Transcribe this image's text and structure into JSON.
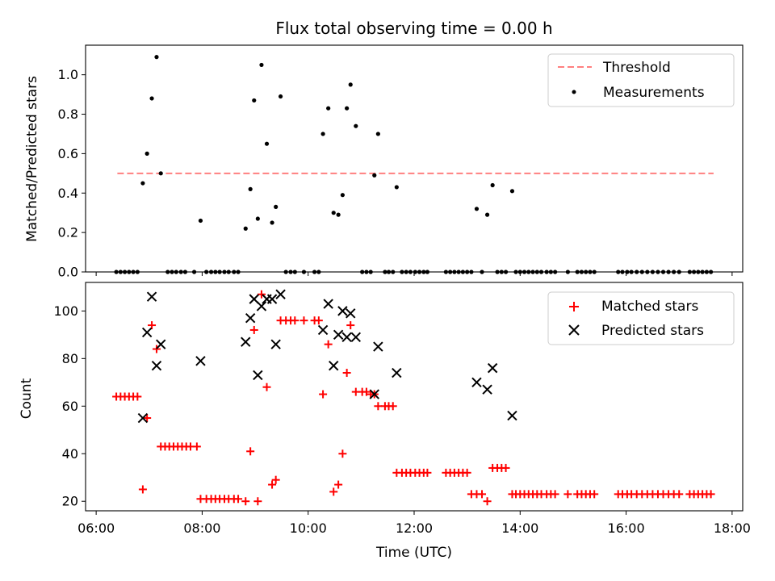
{
  "figure": {
    "title": "Flux total observing time = 0.00 h",
    "shared_x_ticks": [
      "06:00",
      "08:00",
      "10:00",
      "12:00",
      "14:00",
      "16:00",
      "18:00"
    ],
    "shared_x_label": "Time (UTC)"
  },
  "chart_data": [
    {
      "type": "scatter",
      "ylabel": "Matched/Predicted stars",
      "xlim": [
        5.8,
        18.2
      ],
      "ylim": [
        0,
        1.15
      ],
      "y_ticks": [
        "0.0",
        "0.2",
        "0.4",
        "0.6",
        "0.8",
        "1.0"
      ],
      "y_tick_values": [
        0,
        0.2,
        0.4,
        0.6,
        0.8,
        1.0
      ],
      "legend": {
        "placement": "top-right",
        "entries": [
          {
            "label": "Threshold",
            "style": "dashed-line",
            "color": "#ff7f7f"
          },
          {
            "label": "Measurements",
            "style": "dot",
            "color": "#000000"
          }
        ]
      },
      "series": [
        {
          "name": "Threshold",
          "style": "dashed-line",
          "color": "#ff7f7f",
          "x": [
            6.4,
            17.65
          ],
          "y": [
            0.5,
            0.5
          ]
        },
        {
          "name": "Measurements",
          "style": "dot",
          "color": "#000000",
          "x": [
            6.38,
            6.46,
            6.54,
            6.62,
            6.7,
            6.78,
            6.88,
            6.96,
            7.05,
            7.14,
            7.22,
            7.35,
            7.43,
            7.51,
            7.6,
            7.68,
            7.85,
            7.97,
            8.08,
            8.17,
            8.25,
            8.33,
            8.42,
            8.5,
            8.6,
            8.68,
            8.82,
            8.91,
            8.98,
            9.05,
            9.12,
            9.22,
            9.32,
            9.39,
            9.48,
            9.58,
            9.67,
            9.75,
            9.92,
            10.12,
            10.2,
            10.28,
            10.38,
            10.48,
            10.57,
            10.65,
            10.73,
            10.8,
            10.9,
            11.02,
            11.1,
            11.18,
            11.25,
            11.32,
            11.45,
            11.52,
            11.6,
            11.67,
            11.77,
            11.85,
            11.93,
            12.02,
            12.1,
            12.18,
            12.25,
            12.6,
            12.68,
            12.76,
            12.84,
            12.92,
            13.0,
            13.08,
            13.18,
            13.28,
            13.38,
            13.48,
            13.57,
            13.65,
            13.73,
            13.85,
            13.92,
            14.0,
            14.08,
            14.16,
            14.24,
            14.32,
            14.4,
            14.5,
            14.58,
            14.66,
            14.9,
            15.08,
            15.16,
            15.24,
            15.32,
            15.4,
            15.85,
            15.93,
            16.02,
            16.1,
            16.2,
            16.3,
            16.4,
            16.5,
            16.6,
            16.7,
            16.8,
            16.9,
            17.0,
            17.2,
            17.28,
            17.36,
            17.44,
            17.52,
            17.6
          ],
          "y": [
            0,
            0,
            0,
            0,
            0,
            0,
            0.45,
            0.6,
            0.88,
            1.09,
            0.5,
            0,
            0,
            0,
            0,
            0,
            0,
            0.26,
            0,
            0,
            0,
            0,
            0,
            0,
            0,
            0,
            0.22,
            0.42,
            0.87,
            0.27,
            1.05,
            0.65,
            0.25,
            0.33,
            0.89,
            0,
            0,
            0,
            0,
            0,
            0,
            0.7,
            0.83,
            0.3,
            0.29,
            0.39,
            0.83,
            0.95,
            0.74,
            0,
            0,
            0,
            0.49,
            0.7,
            0,
            0,
            0,
            0.43,
            0,
            0,
            0,
            0,
            0,
            0,
            0,
            0,
            0,
            0,
            0,
            0,
            0,
            0,
            0.32,
            0,
            0.29,
            0.44,
            0,
            0,
            0,
            0.41,
            0,
            0,
            0,
            0,
            0,
            0,
            0,
            0,
            0,
            0,
            0,
            0,
            0,
            0,
            0,
            0,
            0,
            0,
            0,
            0,
            0,
            0,
            0,
            0,
            0,
            0,
            0,
            0,
            0,
            0,
            0,
            0,
            0,
            0,
            0
          ]
        }
      ]
    },
    {
      "type": "scatter",
      "ylabel": "Count",
      "xlabel": "Time (UTC)",
      "xlim": [
        5.8,
        18.2
      ],
      "ylim": [
        16,
        112
      ],
      "y_ticks": [
        "20",
        "40",
        "60",
        "80",
        "100"
      ],
      "y_tick_values": [
        20,
        40,
        60,
        80,
        100
      ],
      "legend": {
        "placement": "top-right",
        "entries": [
          {
            "label": "Matched stars",
            "style": "plus",
            "color": "#ff0000"
          },
          {
            "label": "Predicted stars",
            "style": "cross",
            "color": "#000000"
          }
        ]
      },
      "series": [
        {
          "name": "Matched stars",
          "style": "plus",
          "color": "#ff0000",
          "x": [
            6.38,
            6.46,
            6.54,
            6.62,
            6.7,
            6.78,
            6.88,
            6.96,
            7.05,
            7.14,
            7.22,
            7.3,
            7.38,
            7.46,
            7.54,
            7.62,
            7.7,
            7.78,
            7.9,
            7.97,
            8.08,
            8.17,
            8.25,
            8.33,
            8.42,
            8.5,
            8.6,
            8.68,
            8.82,
            8.91,
            8.98,
            9.05,
            9.12,
            9.22,
            9.32,
            9.39,
            9.48,
            9.58,
            9.67,
            9.75,
            9.92,
            10.12,
            10.2,
            10.28,
            10.38,
            10.48,
            10.57,
            10.65,
            10.73,
            10.8,
            10.9,
            11.02,
            11.1,
            11.18,
            11.25,
            11.32,
            11.45,
            11.52,
            11.6,
            11.67,
            11.77,
            11.85,
            11.93,
            12.02,
            12.1,
            12.18,
            12.25,
            12.6,
            12.68,
            12.76,
            12.84,
            12.92,
            13.0,
            13.08,
            13.18,
            13.28,
            13.38,
            13.48,
            13.57,
            13.65,
            13.73,
            13.85,
            13.92,
            14.0,
            14.08,
            14.16,
            14.24,
            14.32,
            14.4,
            14.5,
            14.58,
            14.66,
            14.9,
            15.08,
            15.16,
            15.24,
            15.32,
            15.4,
            15.85,
            15.93,
            16.02,
            16.1,
            16.2,
            16.3,
            16.4,
            16.5,
            16.6,
            16.7,
            16.8,
            16.9,
            17.0,
            17.2,
            17.28,
            17.36,
            17.44,
            17.52,
            17.6
          ],
          "y": [
            64,
            64,
            64,
            64,
            64,
            64,
            25,
            55,
            94,
            84,
            43,
            43,
            43,
            43,
            43,
            43,
            43,
            43,
            43,
            21,
            21,
            21,
            21,
            21,
            21,
            21,
            21,
            21,
            20,
            41,
            92,
            20,
            107,
            68,
            27,
            29,
            96,
            96,
            96,
            96,
            96,
            96,
            96,
            65,
            86,
            24,
            27,
            40,
            74,
            94,
            66,
            66,
            66,
            65,
            65,
            60,
            60,
            60,
            60,
            32,
            32,
            32,
            32,
            32,
            32,
            32,
            32,
            32,
            32,
            32,
            32,
            32,
            32,
            23,
            23,
            23,
            20,
            34,
            34,
            34,
            34,
            23,
            23,
            23,
            23,
            23,
            23,
            23,
            23,
            23,
            23,
            23,
            23,
            23,
            23,
            23,
            23,
            23,
            23,
            23,
            23,
            23,
            23,
            23,
            23,
            23,
            23,
            23,
            23,
            23,
            23,
            23,
            23,
            23,
            23,
            23,
            23
          ]
        },
        {
          "name": "Predicted stars",
          "style": "cross",
          "color": "#000000",
          "x": [
            6.88,
            6.96,
            7.05,
            7.14,
            7.22,
            7.97,
            8.82,
            8.91,
            8.98,
            9.05,
            9.12,
            9.22,
            9.32,
            9.39,
            9.48,
            10.28,
            10.38,
            10.48,
            10.57,
            10.65,
            10.73,
            10.8,
            10.9,
            11.25,
            11.32,
            11.67,
            13.18,
            13.38,
            13.48,
            13.85
          ],
          "y": [
            55,
            91,
            106,
            77,
            86,
            79,
            87,
            97,
            105,
            73,
            102,
            105,
            105,
            86,
            107,
            92,
            103,
            77,
            90,
            100,
            89,
            99,
            89,
            65,
            85,
            74,
            70,
            67,
            76,
            56
          ]
        }
      ]
    }
  ]
}
